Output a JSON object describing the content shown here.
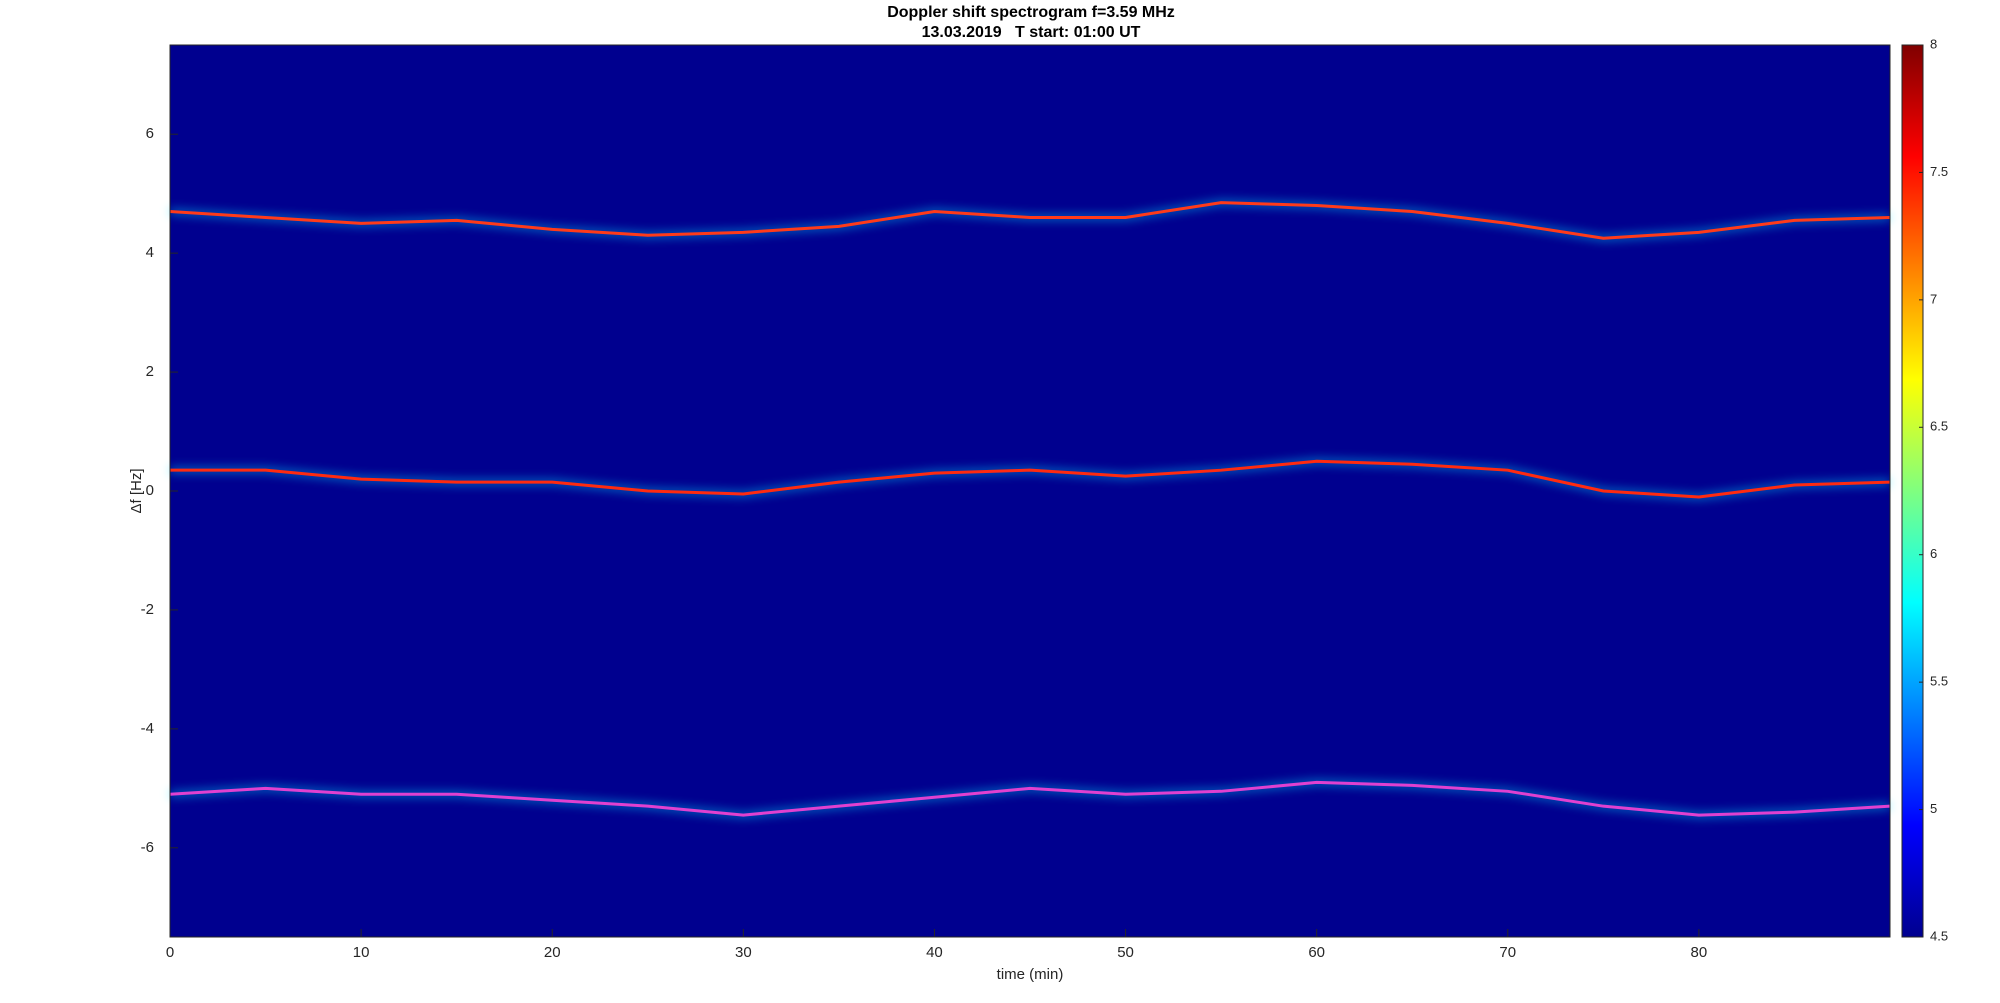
{
  "chart_data": {
    "type": "line",
    "title": "Doppler shift spectrogram f=3.59 MHz",
    "subtitle": "13.03.2019   T start: 01:00 UT",
    "x_label": "time (min)",
    "y_label": "Δf [Hz]",
    "x": [
      0,
      5,
      10,
      15,
      20,
      25,
      30,
      35,
      40,
      45,
      50,
      55,
      60,
      65,
      70,
      75,
      80,
      85,
      90
    ],
    "series": [
      {
        "color": "#ff3a1a",
        "values": [
          4.7,
          4.6,
          4.5,
          4.55,
          4.4,
          4.3,
          4.35,
          4.45,
          4.7,
          4.6,
          4.6,
          4.85,
          4.8,
          4.7,
          4.5,
          4.25,
          4.35,
          4.55,
          4.6
        ]
      },
      {
        "color": "#ff2a10",
        "values": [
          0.35,
          0.35,
          0.2,
          0.15,
          0.15,
          0.0,
          -0.05,
          0.15,
          0.3,
          0.35,
          0.25,
          0.35,
          0.5,
          0.45,
          0.35,
          0.0,
          -0.1,
          0.1,
          0.15
        ]
      },
      {
        "color": "#e040d0",
        "values": [
          -5.1,
          -5.0,
          -5.1,
          -5.1,
          -5.2,
          -5.3,
          -5.45,
          -5.3,
          -5.15,
          -5.0,
          -5.1,
          -5.05,
          -4.9,
          -4.95,
          -5.05,
          -5.3,
          -5.45,
          -5.4,
          -5.3
        ]
      }
    ],
    "xlim": [
      0,
      90
    ],
    "xticks": [
      0,
      10,
      20,
      30,
      40,
      50,
      60,
      70,
      80
    ],
    "ylim": [
      -7.5,
      7.5
    ],
    "yticks": [
      -6,
      -4,
      -2,
      0,
      2,
      4,
      6
    ],
    "background": "#00008f",
    "colorbar": {
      "colormap": "jet",
      "clim": [
        4.5,
        8
      ],
      "ticks": [
        4.5,
        5,
        5.5,
        6,
        6.5,
        7,
        7.5,
        8
      ]
    }
  }
}
